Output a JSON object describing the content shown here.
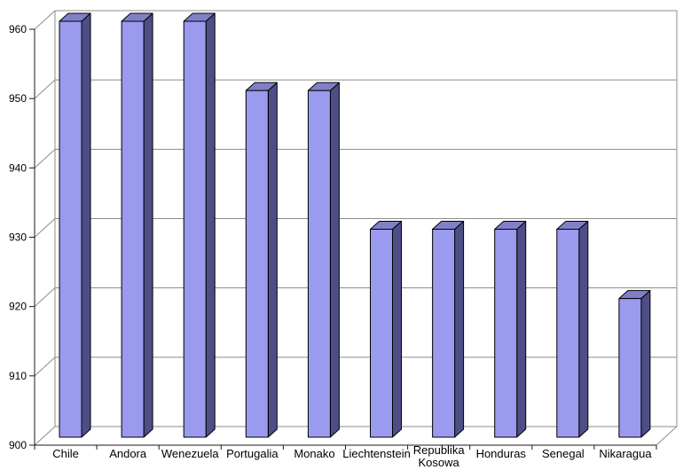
{
  "chart_data": {
    "type": "bar",
    "style": "3d-column",
    "title": "",
    "xlabel": "",
    "ylabel": "",
    "categories": [
      "Chile",
      "Andora",
      "Wenezuela",
      "Portugalia",
      "Monako",
      "Liechtenstein",
      "Republika Kosowa",
      "Honduras",
      "Senegal",
      "Nikaragua"
    ],
    "values": [
      960,
      960,
      960,
      950,
      950,
      930,
      930,
      930,
      930,
      920
    ],
    "ylim": [
      900,
      960
    ],
    "ytick_step": 10,
    "ytick_labels": [
      "900",
      "910",
      "920",
      "930",
      "940",
      "950",
      "960"
    ],
    "grid": true,
    "legend": false,
    "colors": {
      "background": "#ffffff",
      "bar_front": "#9a9aef",
      "bar_top": "#8080c8",
      "bar_side": "#4e4e87",
      "bar_outline": "#000000",
      "grid_line": "#8c8c8c",
      "wall_edge": "#8c8c8c",
      "axis_line": "#1a1a1a",
      "tick": "#1a1a1a",
      "label": "#000000"
    }
  }
}
